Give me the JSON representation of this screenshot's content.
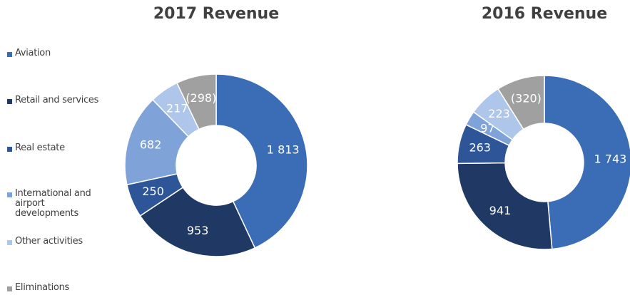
{
  "chart_data": {
    "type": "donut",
    "categories": [
      "Aviation",
      "Retail and services",
      "Real estate",
      "International and airport developments",
      "Other activities",
      "Eliminations"
    ],
    "colors": [
      "#3a6db5",
      "#1f3864",
      "#2e5597",
      "#7fa3d9",
      "#aec6ea",
      "#a0a0a0"
    ],
    "series": [
      {
        "name": "2017 Revenue",
        "values": [
          1813,
          953,
          250,
          682,
          217,
          298
        ],
        "value_labels": [
          "1 813",
          "953",
          "250",
          "682",
          "217",
          "(298)"
        ]
      },
      {
        "name": "2016 Revenue",
        "values": [
          1743,
          941,
          263,
          97,
          223,
          320
        ],
        "value_labels": [
          "1 743",
          "941",
          "263",
          "97",
          "223",
          "(320)"
        ]
      }
    ]
  }
}
